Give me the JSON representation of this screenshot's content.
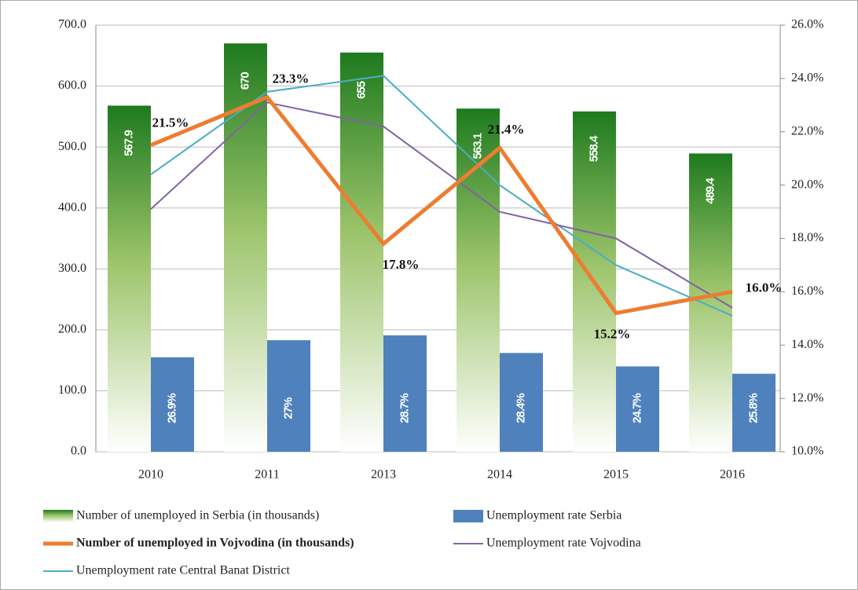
{
  "chart_data": {
    "type": "bar",
    "categories": [
      "2010",
      "2011",
      "2013",
      "2014",
      "2015",
      "2016"
    ],
    "ylim": [
      0,
      700
    ],
    "yticks": [
      {
        "value": 0,
        "label": "0.0"
      },
      {
        "value": 100,
        "label": "100.0"
      },
      {
        "value": 200,
        "label": "200.0"
      },
      {
        "value": 300,
        "label": "300.0"
      },
      {
        "value": 400,
        "label": "400.0"
      },
      {
        "value": 500,
        "label": "500.0"
      },
      {
        "value": 600,
        "label": "600.0"
      },
      {
        "value": 700,
        "label": "700.0"
      }
    ],
    "y2lim": [
      10,
      26
    ],
    "y2ticks": [
      {
        "value": 10,
        "label": "10.0%"
      },
      {
        "value": 12,
        "label": "12.0%"
      },
      {
        "value": 14,
        "label": "14.0%"
      },
      {
        "value": 16,
        "label": "16.0%"
      },
      {
        "value": 18,
        "label": "18.0%"
      },
      {
        "value": 20,
        "label": "20.0%"
      },
      {
        "value": 22,
        "label": "22.0%"
      },
      {
        "value": 24,
        "label": "24.0%"
      },
      {
        "value": 26,
        "label": "26.0%"
      }
    ],
    "grid": true,
    "series": [
      {
        "name": "Number of unemployed in Serbia (in thousands)",
        "type": "bar",
        "color": "#1e7a1e",
        "values": [
          567.9,
          670,
          655,
          563.1,
          558.4,
          489.4
        ]
      },
      {
        "name": "Unemployment rate Serbia",
        "type": "bar",
        "color": "#4f81bd",
        "values": [
          155,
          183,
          191,
          162,
          140,
          128
        ],
        "annotations": [
          "26.9%",
          "27%",
          "28.7%",
          "28.4%",
          "24.7%",
          "25.8%"
        ]
      },
      {
        "name": "Number of unemployed in Vojvodina (in thousands)",
        "type": "line",
        "axis": "y2",
        "color": "#ed7d31",
        "values": [
          21.5,
          23.3,
          17.8,
          21.4,
          15.2,
          16.0
        ],
        "value_labels": [
          "21.5%",
          "23.3%",
          "17.8%",
          "21.4%",
          "15.2%",
          "16.0%"
        ]
      },
      {
        "name": "Unemployment rate Vojvodina",
        "type": "line",
        "axis": "y2",
        "color": "#8064a2",
        "values": [
          19.1,
          23.1,
          22.2,
          19.0,
          18.0,
          15.4
        ]
      },
      {
        "name": "Unemployment rate Central Banat District",
        "type": "line",
        "axis": "y2",
        "color": "#4bacc6",
        "values": [
          20.4,
          23.5,
          24.1,
          20.0,
          17.0,
          15.1
        ]
      }
    ]
  }
}
